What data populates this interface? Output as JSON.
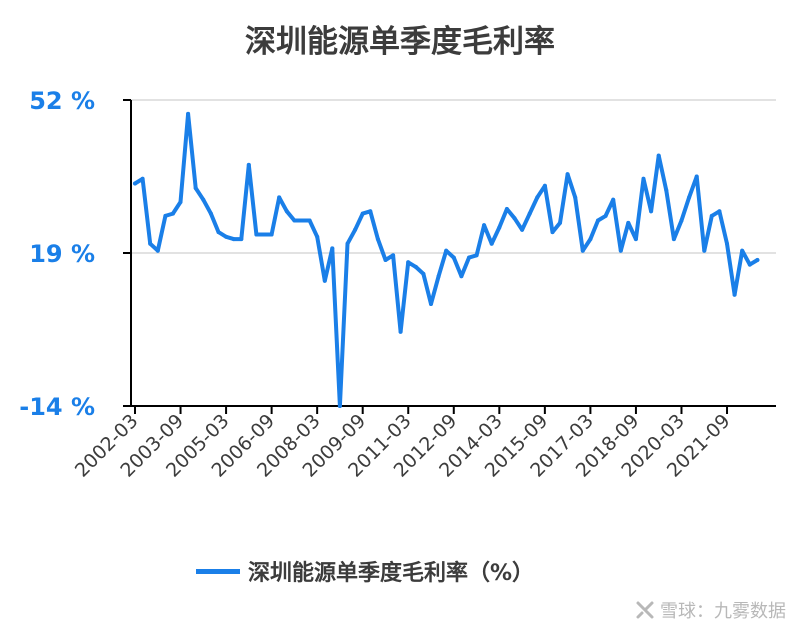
{
  "chart_data": {
    "type": "line",
    "title": "深圳能源单季度毛利率",
    "series": [
      {
        "name": "深圳能源单季度毛利率（%）",
        "color": "#1a7fe8",
        "values": [
          34,
          35,
          21,
          19.5,
          27,
          27.5,
          30,
          49,
          33,
          30.5,
          27.5,
          23.5,
          22.5,
          22,
          22,
          38,
          23,
          23,
          23,
          31,
          28,
          26,
          26,
          26,
          22.5,
          13,
          20,
          -14,
          21,
          24,
          27.5,
          28,
          22,
          17.5,
          18.5,
          2,
          17,
          16,
          14.5,
          8,
          14,
          19.5,
          18,
          14,
          18,
          18.5,
          25,
          21,
          24.5,
          28.5,
          26.5,
          24,
          27.5,
          31,
          33.5,
          23.5,
          25.5,
          36,
          31,
          19.5,
          22,
          26,
          27,
          30.5,
          19.5,
          25.5,
          22,
          35,
          28,
          40,
          32.5,
          22,
          26,
          31,
          35.5,
          19.5,
          27,
          28,
          21,
          10,
          19.5,
          16.5,
          17.5
        ]
      }
    ],
    "x_tick_labels": [
      "2002-03",
      "2003-09",
      "2005-03",
      "2006-09",
      "2008-03",
      "2009-09",
      "2011-03",
      "2012-09",
      "2014-03",
      "2015-09",
      "2017-03",
      "2018-09",
      "2020-03",
      "2021-09"
    ],
    "y_tick_labels": [
      "52 %",
      "19 %",
      "-14 %"
    ],
    "y_ticks": [
      52,
      19,
      -14
    ],
    "ylim": [
      -14,
      52
    ],
    "grid": "horizontal",
    "legend": "bottom",
    "colors": {
      "line": "#1a7fe8",
      "y_tick_label": "#1a7fe8",
      "axis": "#000000",
      "grid": "#e2e2e2",
      "text": "#3c3c3c"
    }
  },
  "watermark": "雪球：九雾数据"
}
